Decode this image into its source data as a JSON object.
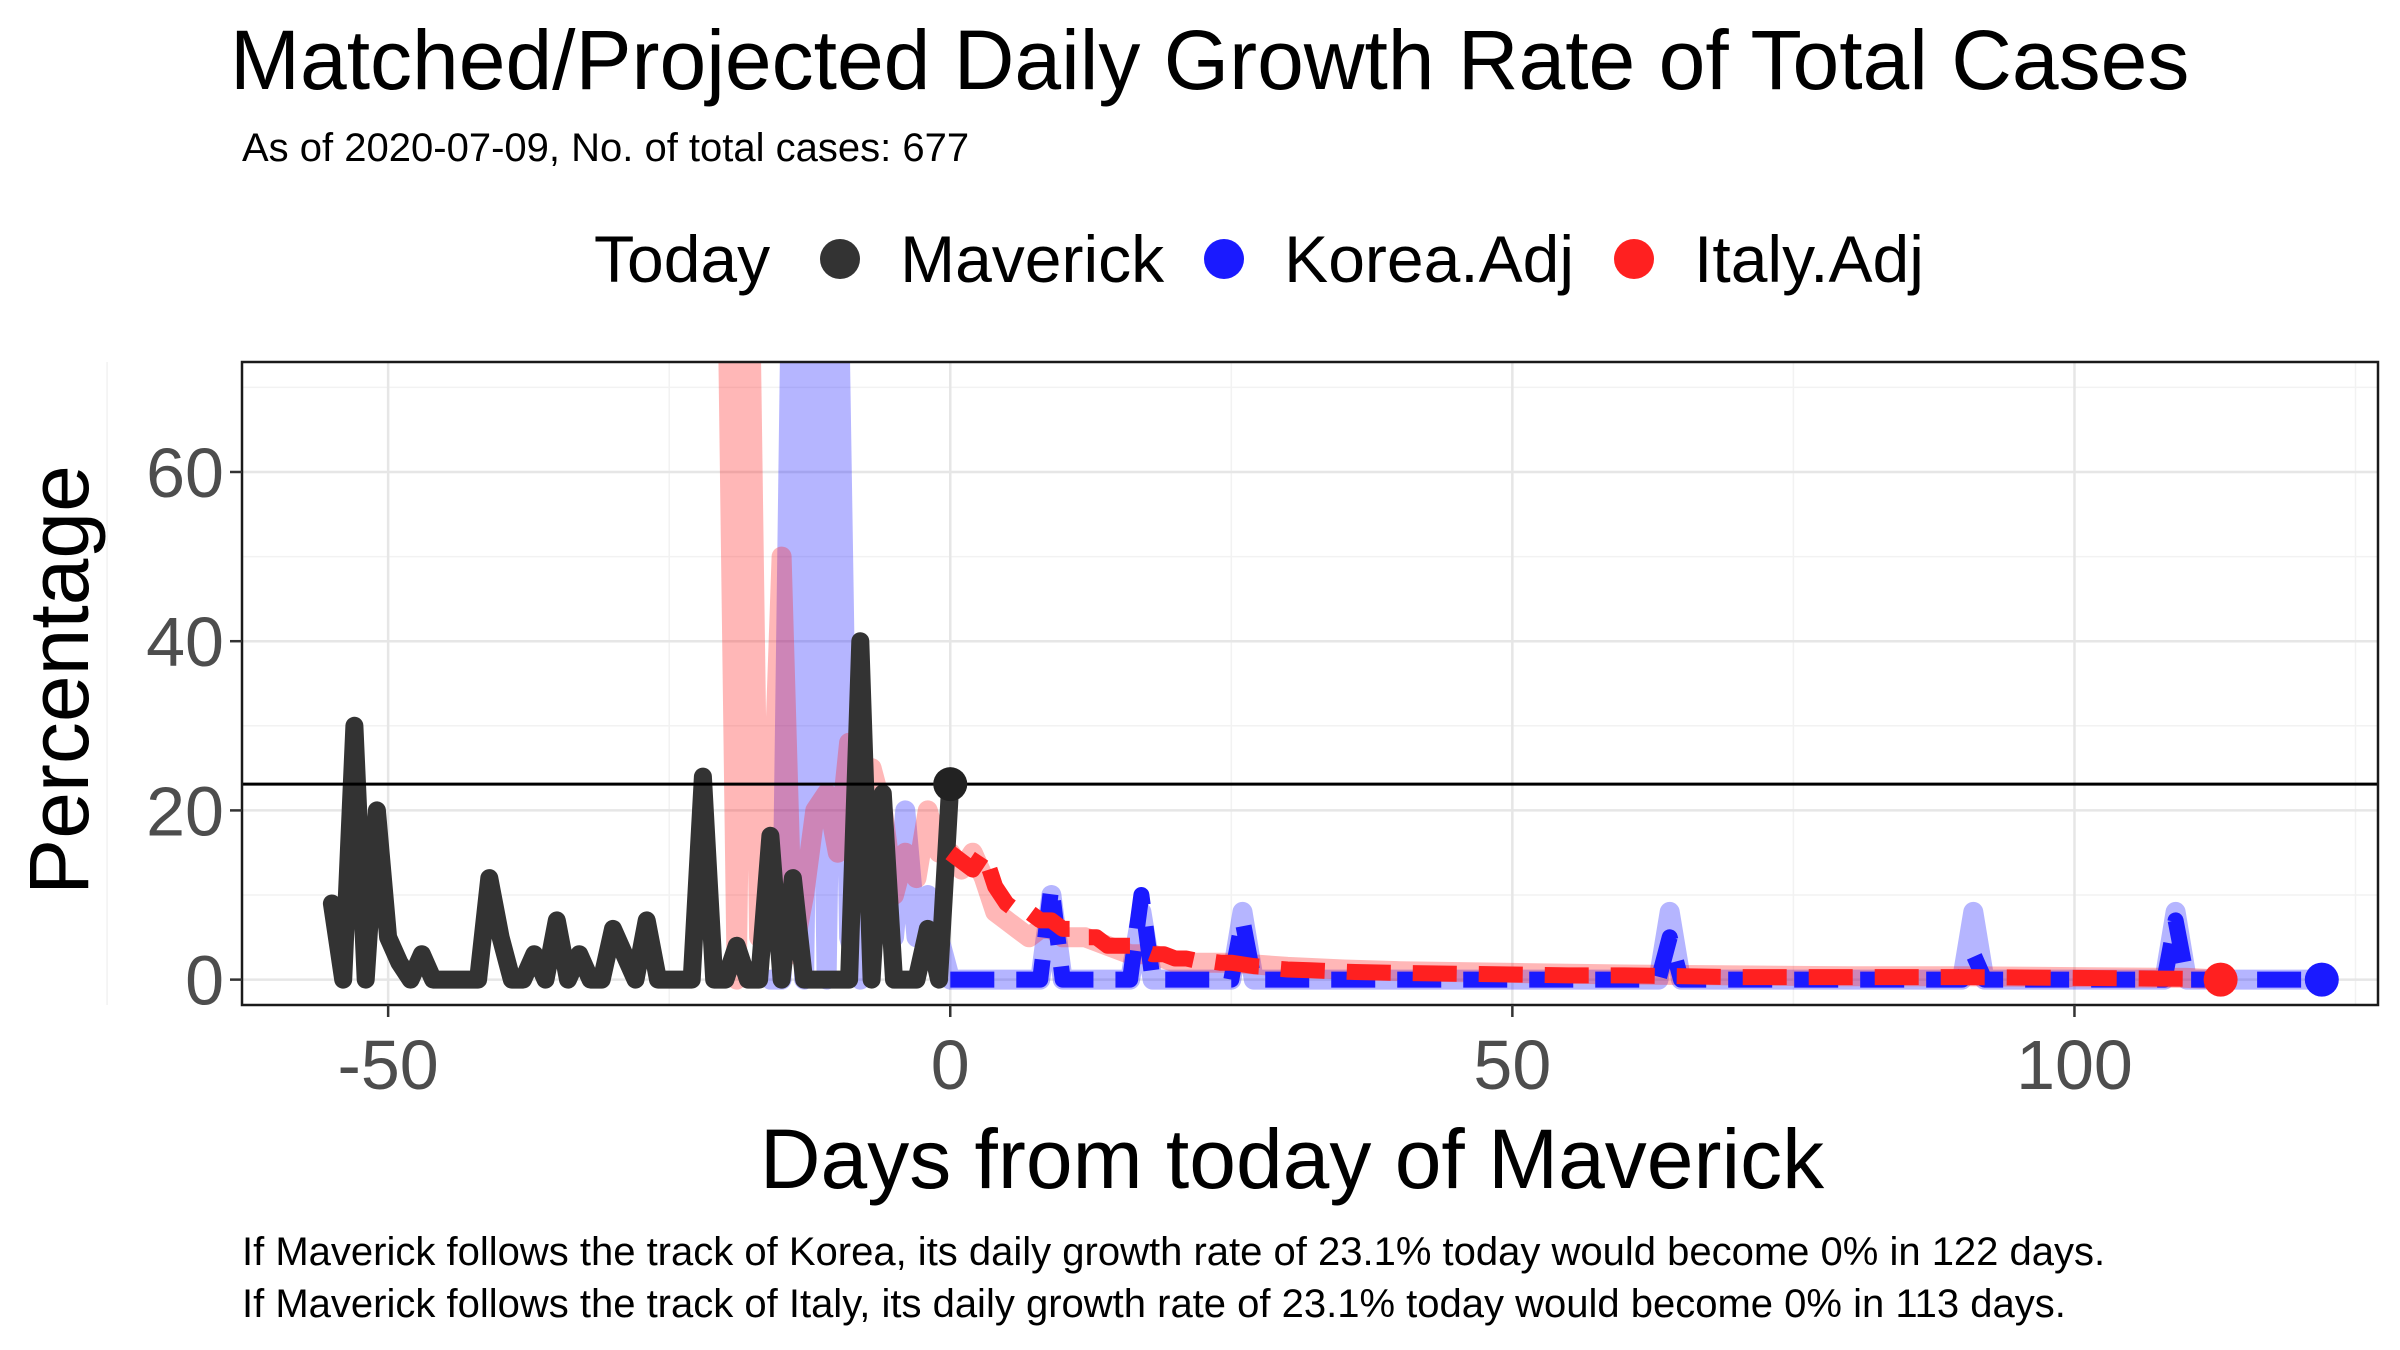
{
  "title": "Matched/Projected Daily Growth Rate of Total Cases",
  "subtitle": "As of 2020-07-09, No. of total cases: 677",
  "legend": {
    "title": "Today",
    "items": [
      {
        "label": "Maverick",
        "color": "#333333"
      },
      {
        "label": "Korea.Adj",
        "color": "#1a1aff"
      },
      {
        "label": "Italy.Adj",
        "color": "#ff2020"
      }
    ]
  },
  "caption": {
    "line1": "If Maverick follows the track of Korea, its daily growth rate of 23.1% today would become 0% in 122 days.",
    "line2": "If Maverick follows the track of Italy, its daily growth rate of 23.1% today would become 0% in 113 days."
  },
  "chart_data": {
    "type": "line",
    "xlabel": "Days from today of Maverick",
    "ylabel": "Percentage",
    "xlim": [
      -63,
      127
    ],
    "ylim": [
      -3,
      73
    ],
    "x_ticks": [
      -50,
      0,
      50,
      100
    ],
    "y_ticks": [
      0,
      20,
      40,
      60
    ],
    "x_tick_labels": [
      "-50",
      "0",
      "50",
      "100"
    ],
    "y_tick_labels": [
      "0",
      "20",
      "40",
      "60"
    ],
    "grid": true,
    "legend_position": "top",
    "reference_line": {
      "y": 23.1
    },
    "today_point": {
      "x": 0,
      "y": 23.1
    },
    "series": [
      {
        "name": "Maverick",
        "color": "#333333",
        "style": "solid",
        "x": [
          -55,
          -54,
          -53,
          -52,
          -51,
          -50,
          -49,
          -48,
          -47,
          -46,
          -45,
          -44,
          -43,
          -42,
          -41,
          -40,
          -39,
          -38,
          -37,
          -36,
          -35,
          -34,
          -33,
          -32,
          -31,
          -30,
          -29,
          -28,
          -27,
          -26,
          -25,
          -24,
          -23,
          -22,
          -21,
          -20,
          -19,
          -18,
          -17,
          -16,
          -15,
          -14,
          -13,
          -12,
          -11,
          -10,
          -9,
          -8,
          -7,
          -6,
          -5,
          -4,
          -3,
          -2,
          -1,
          0
        ],
        "values": [
          9,
          0,
          30,
          0,
          20,
          5,
          2,
          0,
          3,
          0,
          0,
          0,
          0,
          0,
          12,
          5,
          0,
          0,
          3,
          0,
          7,
          0,
          3,
          0,
          0,
          6,
          3,
          0,
          7,
          0,
          0,
          0,
          0,
          24,
          0,
          0,
          4,
          0,
          0,
          17,
          0,
          12,
          0,
          0,
          0,
          0,
          0,
          40,
          0,
          22,
          0,
          0,
          0,
          6,
          0,
          23.1
        ]
      },
      {
        "name": "Korea.Adj (matched)",
        "color": "#1a1aff",
        "opacity": 0.32,
        "style": "solid",
        "x": [
          -16,
          -15,
          -14,
          -13,
          -12,
          -11,
          -10,
          -9,
          -8,
          -7,
          -6,
          -5,
          -4,
          -3,
          -2,
          -1,
          0,
          1,
          2,
          3,
          4,
          5,
          6,
          7,
          8,
          9,
          10,
          11,
          12,
          13,
          14,
          15,
          16,
          17,
          18,
          19,
          20,
          21,
          22,
          23,
          24,
          25,
          26,
          27,
          28,
          29,
          30,
          40,
          50,
          60,
          63,
          64,
          65,
          70,
          80,
          90,
          91,
          92,
          93,
          100,
          108,
          109,
          110,
          111,
          112,
          113,
          114,
          115,
          116,
          117,
          118,
          119,
          120,
          121,
          122
        ],
        "values": [
          0,
          0,
          100,
          0,
          100,
          0,
          90,
          5,
          0,
          20,
          10,
          5,
          20,
          5,
          10,
          5,
          0,
          0,
          0,
          0,
          0,
          0,
          0,
          0,
          0,
          10,
          0,
          0,
          0,
          0,
          0,
          0,
          0,
          8,
          0,
          0,
          0,
          0,
          0,
          0,
          0,
          0,
          8,
          0,
          0,
          0,
          0,
          0,
          0,
          0,
          0,
          8,
          0,
          0,
          0,
          0,
          8,
          0,
          0,
          0,
          0,
          8,
          0,
          0,
          0,
          0,
          0,
          0,
          0,
          0,
          0,
          0,
          0,
          0,
          0
        ]
      },
      {
        "name": "Korea.Adj (projected)",
        "color": "#1a1aff",
        "opacity": 1,
        "style": "dashed",
        "x": [
          0,
          1,
          2,
          3,
          4,
          5,
          6,
          7,
          8,
          9,
          10,
          11,
          12,
          13,
          14,
          15,
          16,
          17,
          18,
          19,
          20,
          21,
          22,
          23,
          24,
          25,
          26,
          27,
          28,
          29,
          30,
          40,
          50,
          60,
          63,
          64,
          65,
          70,
          80,
          90,
          91,
          92,
          93,
          100,
          108,
          109,
          110,
          111,
          112,
          113,
          114,
          115,
          116,
          117,
          118,
          119,
          120,
          121,
          122
        ],
        "values": [
          0,
          0,
          0,
          0,
          0,
          0,
          0,
          0,
          0,
          11,
          0,
          0,
          0,
          0,
          0,
          0,
          0,
          10,
          0,
          0,
          0,
          0,
          0,
          0,
          0,
          0,
          7,
          0,
          0,
          0,
          0,
          0,
          0,
          0,
          0,
          5,
          0,
          0,
          0,
          0,
          3,
          0,
          0,
          0,
          0,
          7,
          0,
          0,
          0,
          0,
          0,
          0,
          0,
          0,
          0,
          0,
          0,
          0,
          0
        ]
      },
      {
        "name": "Italy.Adj (matched)",
        "color": "#ff2020",
        "opacity": 0.32,
        "style": "solid",
        "x": [
          -20,
          -19,
          -18,
          -17,
          -16,
          -15,
          -14,
          -13,
          -12,
          -11,
          -10,
          -9,
          -8,
          -7,
          -6,
          -5,
          -4,
          -3,
          -2,
          -1,
          0,
          1,
          2,
          3,
          4,
          5,
          6,
          7,
          8,
          9,
          10,
          12,
          14,
          16,
          18,
          20,
          25,
          30,
          35,
          40,
          50,
          60,
          70,
          80,
          90,
          100,
          110,
          113
        ],
        "values": [
          100,
          0,
          100,
          5,
          12,
          50,
          3,
          10,
          20,
          22,
          15,
          28,
          22,
          25,
          20,
          10,
          15,
          12,
          20,
          15,
          15,
          13,
          15,
          12,
          8,
          7,
          6,
          5,
          6,
          6,
          5,
          5,
          4,
          3,
          3,
          2,
          2,
          1.5,
          1.2,
          1,
          0.8,
          0.6,
          0.5,
          0.4,
          0.4,
          0.3,
          0.2,
          0
        ]
      },
      {
        "name": "Italy.Adj (projected)",
        "color": "#ff2020",
        "opacity": 1,
        "style": "dashed",
        "x": [
          0,
          1,
          2,
          3,
          4,
          5,
          6,
          7,
          8,
          9,
          10,
          11,
          12,
          13,
          14,
          15,
          16,
          17,
          18,
          19,
          20,
          21,
          22,
          23,
          24,
          25,
          26,
          27,
          28,
          29,
          30,
          32,
          34,
          36,
          40,
          45,
          50,
          55,
          60,
          70,
          80,
          90,
          100,
          110,
          113
        ],
        "values": [
          15,
          14,
          13,
          15,
          11,
          9,
          8,
          8,
          7,
          7,
          6,
          6,
          5,
          5,
          4,
          4,
          4,
          3.5,
          3,
          3,
          2.5,
          2.5,
          2.2,
          2.2,
          2,
          2,
          1.8,
          1.6,
          1.5,
          1.3,
          1.2,
          1.1,
          1,
          0.9,
          0.8,
          0.7,
          0.6,
          0.5,
          0.5,
          0.3,
          0.3,
          0.3,
          0.2,
          0.1,
          0
        ]
      }
    ],
    "endpoints": [
      {
        "name": "Korea.Adj",
        "x": 122,
        "y": 0
      },
      {
        "name": "Italy.Adj",
        "x": 113,
        "y": 0
      }
    ]
  }
}
